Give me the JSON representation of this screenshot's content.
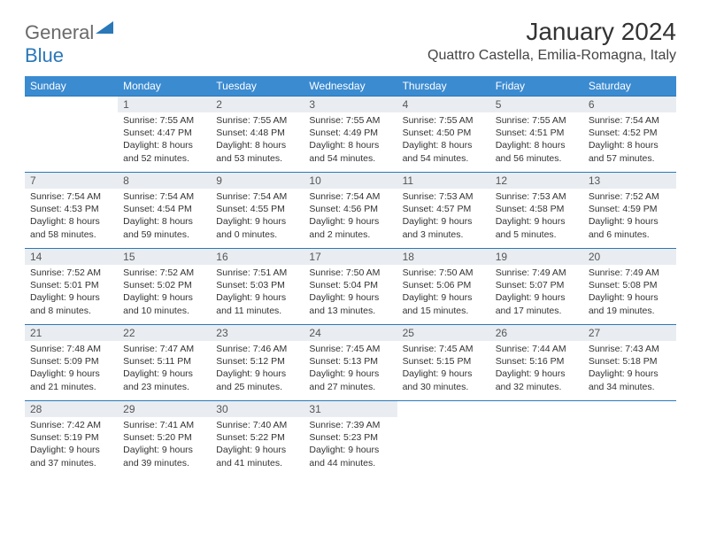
{
  "brand": {
    "part1": "General",
    "part2": "Blue"
  },
  "title": "January 2024",
  "location": "Quattro Castella, Emilia-Romagna, Italy",
  "colors": {
    "header_bg": "#3b8bd1",
    "row_border": "#2a78b8",
    "daybar_bg": "#e9edf1",
    "logo_gray": "#6a6a6a",
    "logo_blue": "#2a78b8"
  },
  "days_of_week": [
    "Sunday",
    "Monday",
    "Tuesday",
    "Wednesday",
    "Thursday",
    "Friday",
    "Saturday"
  ],
  "first_weekday_offset": 1,
  "days": [
    {
      "n": 1,
      "sunrise": "7:55 AM",
      "sunset": "4:47 PM",
      "daylight": "8 hours and 52 minutes."
    },
    {
      "n": 2,
      "sunrise": "7:55 AM",
      "sunset": "4:48 PM",
      "daylight": "8 hours and 53 minutes."
    },
    {
      "n": 3,
      "sunrise": "7:55 AM",
      "sunset": "4:49 PM",
      "daylight": "8 hours and 54 minutes."
    },
    {
      "n": 4,
      "sunrise": "7:55 AM",
      "sunset": "4:50 PM",
      "daylight": "8 hours and 54 minutes."
    },
    {
      "n": 5,
      "sunrise": "7:55 AM",
      "sunset": "4:51 PM",
      "daylight": "8 hours and 56 minutes."
    },
    {
      "n": 6,
      "sunrise": "7:54 AM",
      "sunset": "4:52 PM",
      "daylight": "8 hours and 57 minutes."
    },
    {
      "n": 7,
      "sunrise": "7:54 AM",
      "sunset": "4:53 PM",
      "daylight": "8 hours and 58 minutes."
    },
    {
      "n": 8,
      "sunrise": "7:54 AM",
      "sunset": "4:54 PM",
      "daylight": "8 hours and 59 minutes."
    },
    {
      "n": 9,
      "sunrise": "7:54 AM",
      "sunset": "4:55 PM",
      "daylight": "9 hours and 0 minutes."
    },
    {
      "n": 10,
      "sunrise": "7:54 AM",
      "sunset": "4:56 PM",
      "daylight": "9 hours and 2 minutes."
    },
    {
      "n": 11,
      "sunrise": "7:53 AM",
      "sunset": "4:57 PM",
      "daylight": "9 hours and 3 minutes."
    },
    {
      "n": 12,
      "sunrise": "7:53 AM",
      "sunset": "4:58 PM",
      "daylight": "9 hours and 5 minutes."
    },
    {
      "n": 13,
      "sunrise": "7:52 AM",
      "sunset": "4:59 PM",
      "daylight": "9 hours and 6 minutes."
    },
    {
      "n": 14,
      "sunrise": "7:52 AM",
      "sunset": "5:01 PM",
      "daylight": "9 hours and 8 minutes."
    },
    {
      "n": 15,
      "sunrise": "7:52 AM",
      "sunset": "5:02 PM",
      "daylight": "9 hours and 10 minutes."
    },
    {
      "n": 16,
      "sunrise": "7:51 AM",
      "sunset": "5:03 PM",
      "daylight": "9 hours and 11 minutes."
    },
    {
      "n": 17,
      "sunrise": "7:50 AM",
      "sunset": "5:04 PM",
      "daylight": "9 hours and 13 minutes."
    },
    {
      "n": 18,
      "sunrise": "7:50 AM",
      "sunset": "5:06 PM",
      "daylight": "9 hours and 15 minutes."
    },
    {
      "n": 19,
      "sunrise": "7:49 AM",
      "sunset": "5:07 PM",
      "daylight": "9 hours and 17 minutes."
    },
    {
      "n": 20,
      "sunrise": "7:49 AM",
      "sunset": "5:08 PM",
      "daylight": "9 hours and 19 minutes."
    },
    {
      "n": 21,
      "sunrise": "7:48 AM",
      "sunset": "5:09 PM",
      "daylight": "9 hours and 21 minutes."
    },
    {
      "n": 22,
      "sunrise": "7:47 AM",
      "sunset": "5:11 PM",
      "daylight": "9 hours and 23 minutes."
    },
    {
      "n": 23,
      "sunrise": "7:46 AM",
      "sunset": "5:12 PM",
      "daylight": "9 hours and 25 minutes."
    },
    {
      "n": 24,
      "sunrise": "7:45 AM",
      "sunset": "5:13 PM",
      "daylight": "9 hours and 27 minutes."
    },
    {
      "n": 25,
      "sunrise": "7:45 AM",
      "sunset": "5:15 PM",
      "daylight": "9 hours and 30 minutes."
    },
    {
      "n": 26,
      "sunrise": "7:44 AM",
      "sunset": "5:16 PM",
      "daylight": "9 hours and 32 minutes."
    },
    {
      "n": 27,
      "sunrise": "7:43 AM",
      "sunset": "5:18 PM",
      "daylight": "9 hours and 34 minutes."
    },
    {
      "n": 28,
      "sunrise": "7:42 AM",
      "sunset": "5:19 PM",
      "daylight": "9 hours and 37 minutes."
    },
    {
      "n": 29,
      "sunrise": "7:41 AM",
      "sunset": "5:20 PM",
      "daylight": "9 hours and 39 minutes."
    },
    {
      "n": 30,
      "sunrise": "7:40 AM",
      "sunset": "5:22 PM",
      "daylight": "9 hours and 41 minutes."
    },
    {
      "n": 31,
      "sunrise": "7:39 AM",
      "sunset": "5:23 PM",
      "daylight": "9 hours and 44 minutes."
    }
  ],
  "labels": {
    "sunrise": "Sunrise:",
    "sunset": "Sunset:",
    "daylight": "Daylight:"
  }
}
